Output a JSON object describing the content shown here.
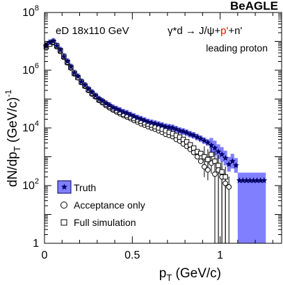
{
  "chart_data": {
    "type": "scatter",
    "scale": {
      "y": "log"
    },
    "xlim": [
      0,
      1.35
    ],
    "ylim": [
      1,
      100000000
    ],
    "xlabel": "p",
    "xlabel_sub": "T",
    "xlabel_suffix": " (GeV/c)",
    "ylabel": "dN/dp",
    "ylabel_sub": "T",
    "ylabel_suffix": " (GeV/c)",
    "ylabel_sup": "-1",
    "x_ticks": [
      {
        "value": 0,
        "label": "0"
      },
      {
        "value": 0.5,
        "label": "0.5"
      },
      {
        "value": 1,
        "label": "1"
      }
    ],
    "y_ticks": [
      {
        "value": 1,
        "base": "1",
        "exp": ""
      },
      {
        "value": 100,
        "base": "10",
        "exp": "2"
      },
      {
        "value": 10000,
        "base": "10",
        "exp": "4"
      },
      {
        "value": 1000000,
        "base": "10",
        "exp": "6"
      },
      {
        "value": 100000000,
        "base": "10",
        "exp": "8"
      }
    ],
    "annotations": {
      "experiment": "BeAGLE",
      "beam": "eD 18x110 GeV",
      "reaction_pre": "γ*d → J/ψ+",
      "reaction_p": "p'",
      "reaction_post": "+n'",
      "selection": "leading proton"
    },
    "legend": {
      "position": "bottom-left"
    },
    "colors": {
      "truth": "#000066",
      "band": "#8080ff",
      "highlight": "#ff0000"
    },
    "series": [
      {
        "name": "Truth",
        "marker": "star",
        "x": [
          0.01,
          0.03,
          0.05,
          0.07,
          0.09,
          0.11,
          0.13,
          0.15,
          0.17,
          0.19,
          0.21,
          0.23,
          0.25,
          0.27,
          0.29,
          0.31,
          0.33,
          0.35,
          0.37,
          0.39,
          0.41,
          0.43,
          0.45,
          0.47,
          0.49,
          0.51,
          0.53,
          0.55,
          0.57,
          0.59,
          0.61,
          0.63,
          0.65,
          0.67,
          0.69,
          0.71,
          0.73,
          0.75,
          0.77,
          0.79,
          0.81,
          0.83,
          0.85,
          0.87,
          0.89,
          0.91,
          0.93,
          0.95,
          0.97,
          0.99,
          1.01,
          1.03,
          1.05,
          1.07,
          1.09,
          1.11,
          1.13,
          1.15,
          1.17,
          1.19,
          1.21,
          1.23,
          1.25
        ],
        "y": [
          7000000,
          9000000,
          10000000,
          7000000,
          5000000,
          3000000,
          2000000,
          1300000,
          800000,
          600000,
          400000,
          300000,
          220000,
          170000,
          130000,
          100000,
          85000,
          70000,
          60000,
          50000,
          45000,
          40000,
          35000,
          32000,
          28000,
          25000,
          22000,
          20000,
          18000,
          16000,
          15000,
          14000,
          13000,
          12000,
          11000,
          10500,
          10000,
          9000,
          8000,
          7500,
          6800,
          6000,
          5500,
          4800,
          4200,
          3600,
          3100,
          2500,
          2000,
          1500,
          1200,
          900,
          550,
          700,
          500,
          150,
          150,
          150,
          150,
          150,
          150,
          150,
          150
        ]
      },
      {
        "name": "Acceptance only",
        "marker": "circle",
        "x": [
          0.01,
          0.03,
          0.05,
          0.07,
          0.09,
          0.11,
          0.13,
          0.15,
          0.17,
          0.19,
          0.21,
          0.23,
          0.25,
          0.27,
          0.29,
          0.31,
          0.33,
          0.35,
          0.37,
          0.39,
          0.41,
          0.43,
          0.45,
          0.47,
          0.49,
          0.51,
          0.53,
          0.55,
          0.57,
          0.59,
          0.61,
          0.63,
          0.65,
          0.67,
          0.69,
          0.71,
          0.73,
          0.75,
          0.77,
          0.79,
          0.81,
          0.83,
          0.85,
          0.87,
          0.89,
          0.91,
          0.93,
          0.95,
          0.97,
          0.99,
          1.01,
          1.03,
          1.05
        ],
        "y": [
          7000000,
          8500000,
          9000000,
          6500000,
          4500000,
          2800000,
          1800000,
          1200000,
          750000,
          550000,
          380000,
          280000,
          200000,
          150000,
          120000,
          90000,
          75000,
          60000,
          50000,
          42000,
          36000,
          31000,
          27000,
          24000,
          21000,
          18000,
          16000,
          14000,
          12500,
          11000,
          10000,
          9000,
          8000,
          7000,
          6000,
          5500,
          5000,
          4000,
          3500,
          2800,
          2300,
          1800,
          1400,
          1000,
          700,
          450,
          350,
          600,
          250,
          350,
          200,
          120,
          90
        ]
      },
      {
        "name": "Full simulation",
        "marker": "square",
        "x": [
          0.01,
          0.03,
          0.05,
          0.07,
          0.09,
          0.11,
          0.13,
          0.15,
          0.17,
          0.19,
          0.21,
          0.23,
          0.25,
          0.27,
          0.29,
          0.31,
          0.33,
          0.35,
          0.37,
          0.39,
          0.41,
          0.43,
          0.45,
          0.47,
          0.49,
          0.51,
          0.53,
          0.55,
          0.57,
          0.59,
          0.61,
          0.63,
          0.65,
          0.67,
          0.69,
          0.71,
          0.73,
          0.75,
          0.77,
          0.79,
          0.81,
          0.83,
          0.85,
          0.87,
          0.89,
          0.91,
          0.93,
          0.95,
          0.97,
          0.99,
          1.01,
          1.03
        ],
        "y": [
          6500000,
          8000000,
          9500000,
          7000000,
          4800000,
          3000000,
          1900000,
          1250000,
          780000,
          560000,
          390000,
          290000,
          210000,
          160000,
          125000,
          95000,
          80000,
          65000,
          55000,
          46000,
          40000,
          35000,
          30000,
          27000,
          24000,
          21000,
          19000,
          17000,
          15000,
          13500,
          12500,
          11000,
          10000,
          9000,
          8000,
          7000,
          6300,
          5500,
          4800,
          4000,
          3300,
          2600,
          2000,
          1500,
          1300,
          1000,
          800,
          1200,
          700,
          500,
          300,
          200
        ]
      }
    ]
  }
}
